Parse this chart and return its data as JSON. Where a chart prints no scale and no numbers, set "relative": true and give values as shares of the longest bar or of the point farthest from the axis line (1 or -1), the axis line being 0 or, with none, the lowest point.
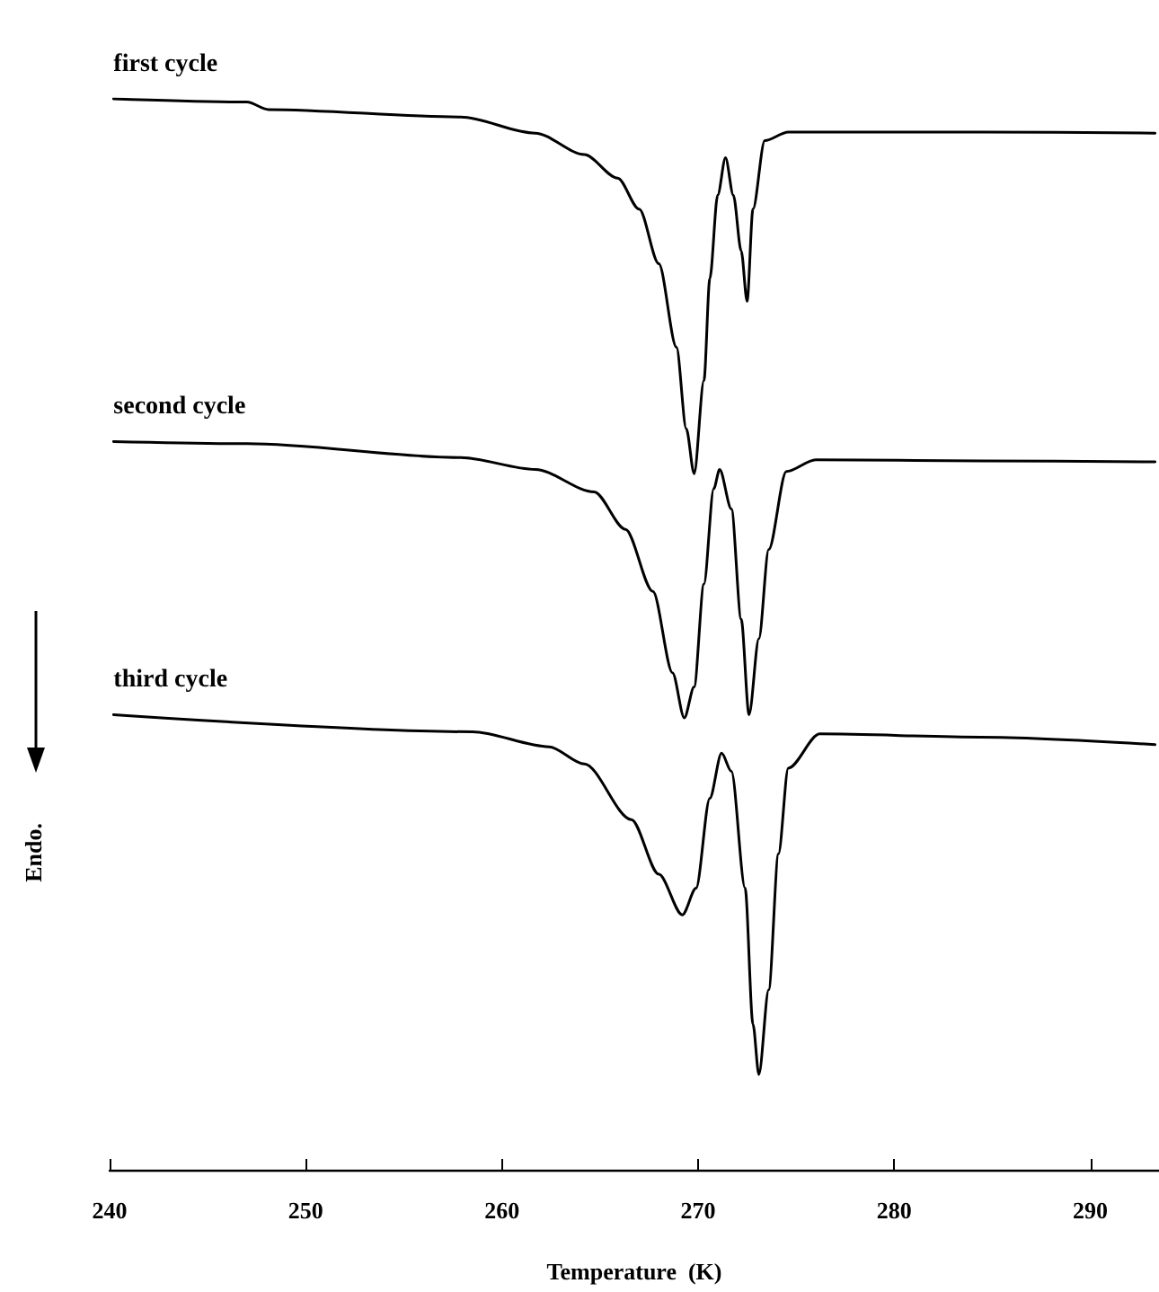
{
  "chart_data": {
    "type": "line",
    "relative": true,
    "xlabel": "Temperature  (K)",
    "ylabel": "Endo.",
    "xlim": [
      240,
      293.5
    ],
    "xticks": [
      240,
      250,
      260,
      270,
      280,
      290
    ],
    "grid": false,
    "legend": false,
    "marker": "none",
    "line_style": "solid",
    "tick_labels": "x",
    "series": [
      {
        "name": "first cycle",
        "color": "#000000",
        "x": [
          240.2,
          247.0,
          248.1,
          257.9,
          261.7,
          264.2,
          265.9,
          267.0,
          268.0,
          268.9,
          269.4,
          269.8,
          270.3,
          270.6,
          271.0,
          271.4,
          271.8,
          272.2,
          272.5,
          272.8,
          273.4,
          274.6,
          284.4,
          293.3
        ],
        "values": [
          1.0,
          0.997,
          0.99,
          0.983,
          0.968,
          0.948,
          0.926,
          0.897,
          0.846,
          0.768,
          0.692,
          0.65,
          0.737,
          0.832,
          0.91,
          0.945,
          0.91,
          0.858,
          0.811,
          0.897,
          0.961,
          0.969,
          0.969,
          0.968
        ]
      },
      {
        "name": "second cycle",
        "color": "#000000",
        "x": [
          240.2,
          247.0,
          257.9,
          261.7,
          264.7,
          266.3,
          267.7,
          268.7,
          269.3,
          269.8,
          270.3,
          270.8,
          271.1,
          271.7,
          272.2,
          272.6,
          273.1,
          273.6,
          274.5,
          276.0,
          284.4,
          293.3
        ],
        "values": [
          0.68,
          0.678,
          0.665,
          0.654,
          0.633,
          0.598,
          0.54,
          0.464,
          0.422,
          0.451,
          0.547,
          0.636,
          0.654,
          0.617,
          0.514,
          0.425,
          0.496,
          0.579,
          0.652,
          0.663,
          0.662,
          0.661
        ]
      },
      {
        "name": "third cycle",
        "color": "#000000",
        "x": [
          240.2,
          258.5,
          262.4,
          264.2,
          266.6,
          268.0,
          269.2,
          269.9,
          270.6,
          271.2,
          271.7,
          272.4,
          272.8,
          273.1,
          273.6,
          274.1,
          274.6,
          276.2,
          284.4,
          293.3
        ],
        "values": [
          0.425,
          0.409,
          0.395,
          0.379,
          0.327,
          0.276,
          0.238,
          0.263,
          0.347,
          0.389,
          0.372,
          0.263,
          0.136,
          0.089,
          0.168,
          0.295,
          0.375,
          0.407,
          0.404,
          0.397
        ]
      }
    ]
  }
}
